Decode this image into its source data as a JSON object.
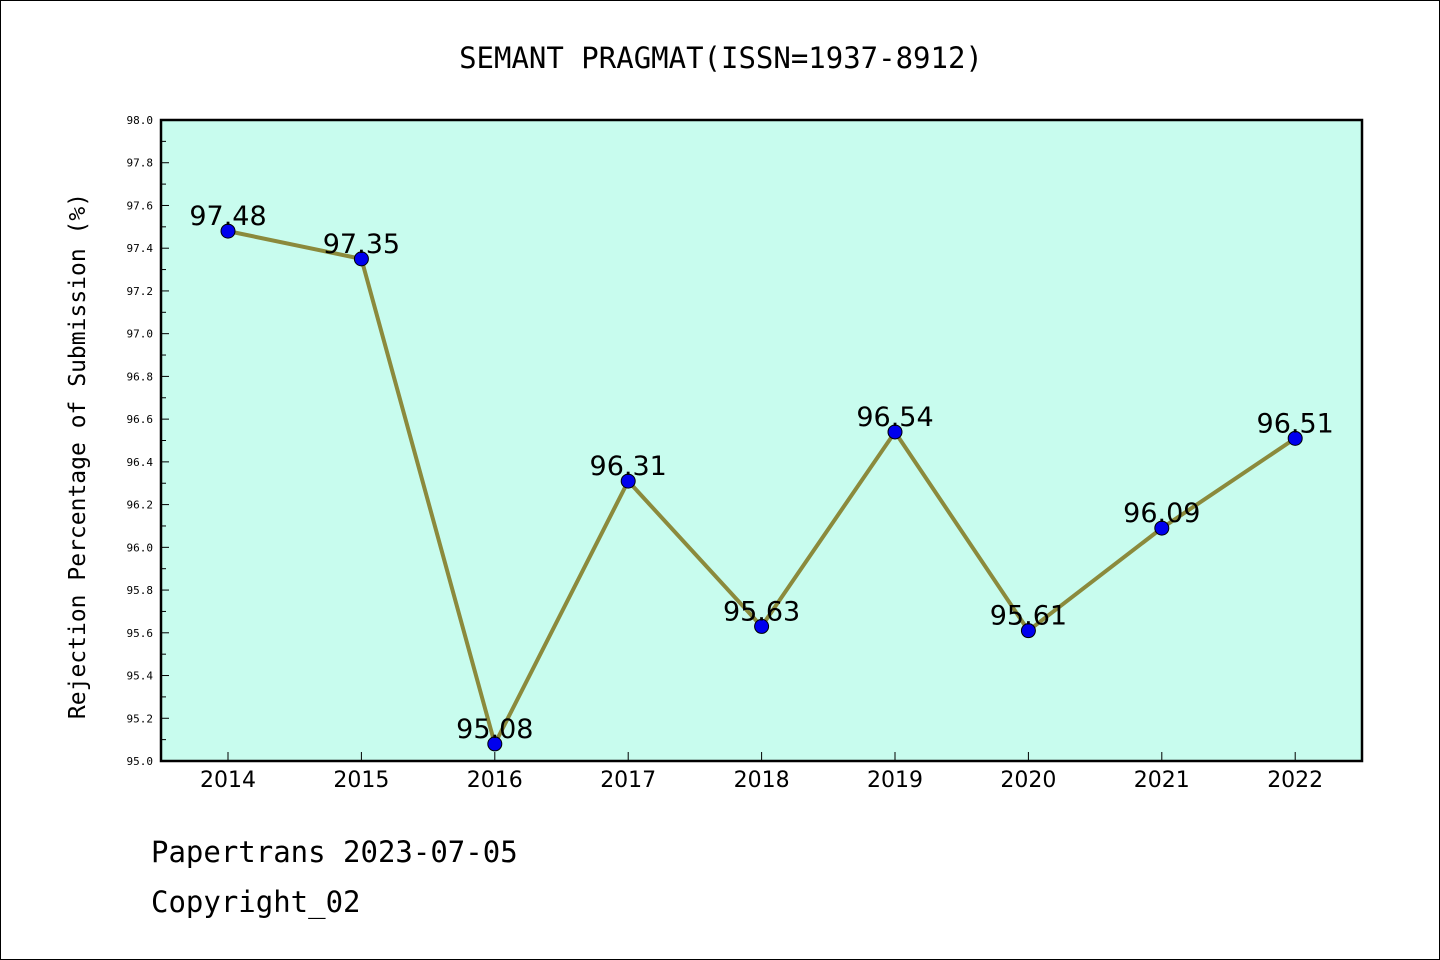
{
  "chart_data": {
    "type": "line",
    "title": "SEMANT PRAGMAT(ISSN=1937-8912)",
    "xlabel": "",
    "ylabel": "Rejection Percentage of Submission (%)",
    "categories": [
      "2014",
      "2015",
      "2016",
      "2017",
      "2018",
      "2019",
      "2020",
      "2021",
      "2022"
    ],
    "series": [
      {
        "values": [
          97.48,
          97.35,
          95.08,
          96.31,
          95.63,
          96.54,
          95.61,
          96.09,
          96.51
        ],
        "data_labels": [
          "97.48",
          "97.35",
          "95.08",
          "96.31",
          "95.63",
          "96.54",
          "95.61",
          "96.09",
          "96.51"
        ]
      }
    ],
    "ylim": [
      95.0,
      98.0
    ],
    "yticks": [
      "95.0",
      "95.2",
      "95.4",
      "95.6",
      "95.8",
      "96.0",
      "96.2",
      "96.4",
      "96.6",
      "96.8",
      "97.0",
      "97.2",
      "97.4",
      "97.6",
      "97.8",
      "98.0"
    ],
    "grid": false,
    "legend": "none",
    "colors": {
      "plot_background": "#c8fcee",
      "line": "#8b8a3c",
      "marker": "#0000ee",
      "axis": "#000000"
    }
  },
  "footer": {
    "credit": "Papertrans 2023-07-05",
    "copyright": "Copyright_02"
  }
}
